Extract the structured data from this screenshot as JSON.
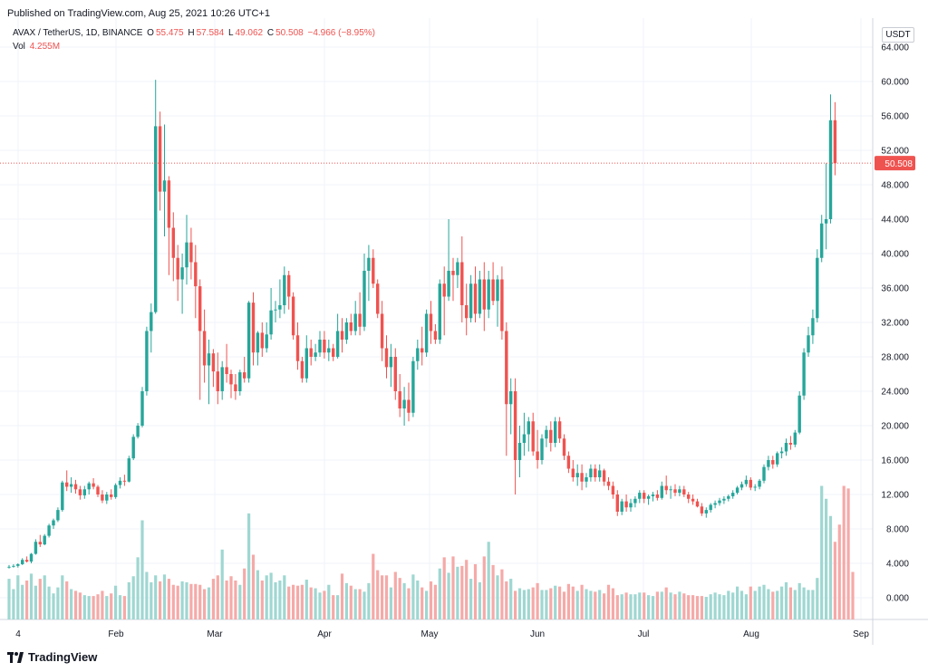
{
  "published": "Published on TradingView.com, Aug 25, 2021 10:26 UTC+1",
  "legend": {
    "symbol": "AVAX / TetherUS, 1D, BINANCE",
    "open_label": "O",
    "open": "55.475",
    "high_label": "H",
    "high": "57.584",
    "low_label": "L",
    "low": "49.062",
    "close_label": "C",
    "close": "50.508",
    "change": "−4.966 (−8.95%)",
    "vol_label": "Vol",
    "vol": "4.255M"
  },
  "currency": "USDT",
  "brand": "TradingView",
  "colors": {
    "up": "#26a69a",
    "down": "#ef5350",
    "up_vol": "#9fd7d1",
    "down_vol": "#f5aaa8",
    "price_line": "#ef5350",
    "grid": "#f0f3fa"
  },
  "chart_data": {
    "type": "candlestick",
    "ylim": [
      -2,
      66
    ],
    "y_ticks": [
      "64.000",
      "60.000",
      "56.000",
      "52.000",
      "48.000",
      "44.000",
      "40.000",
      "36.000",
      "32.000",
      "28.000",
      "24.000",
      "20.000",
      "16.000",
      "12.000",
      "8.000",
      "4.000",
      "0.000"
    ],
    "x_ticks": [
      "4",
      "Feb",
      "Mar",
      "Apr",
      "May",
      "Jun",
      "Jul",
      "Aug",
      "Sep"
    ],
    "last_price": "50.508",
    "grid": true,
    "candles": [
      [
        3.5,
        3.8,
        3.4,
        3.6
      ],
      [
        3.6,
        3.9,
        3.5,
        3.7
      ],
      [
        3.7,
        4.0,
        3.5,
        3.9
      ],
      [
        3.9,
        4.6,
        3.8,
        4.4
      ],
      [
        4.4,
        4.8,
        4.1,
        4.2
      ],
      [
        4.2,
        5.2,
        4.0,
        5.1
      ],
      [
        5.1,
        6.8,
        5.0,
        6.5
      ],
      [
        6.5,
        7.3,
        5.9,
        6.2
      ],
      [
        6.2,
        7.4,
        6.1,
        7.2
      ],
      [
        7.2,
        8.6,
        7.0,
        8.4
      ],
      [
        8.4,
        9.2,
        8.0,
        9.0
      ],
      [
        9.0,
        10.5,
        8.8,
        10.2
      ],
      [
        10.2,
        13.6,
        10.0,
        13.4
      ],
      [
        13.4,
        14.8,
        12.4,
        12.9
      ],
      [
        12.9,
        14.0,
        12.2,
        13.2
      ],
      [
        13.2,
        13.7,
        12.1,
        12.6
      ],
      [
        12.6,
        13.0,
        11.4,
        11.9
      ],
      [
        11.9,
        13.0,
        11.5,
        12.6
      ],
      [
        12.6,
        13.5,
        12.0,
        13.3
      ],
      [
        13.3,
        13.9,
        12.6,
        12.9
      ],
      [
        12.9,
        13.1,
        11.7,
        12.0
      ],
      [
        12.0,
        12.5,
        11.0,
        11.3
      ],
      [
        11.3,
        12.3,
        10.9,
        12.0
      ],
      [
        12.0,
        12.6,
        11.4,
        11.7
      ],
      [
        11.7,
        13.3,
        11.5,
        13.1
      ],
      [
        13.1,
        14.0,
        12.7,
        13.6
      ],
      [
        13.6,
        14.3,
        13.0,
        13.5
      ],
      [
        13.5,
        16.5,
        13.4,
        16.2
      ],
      [
        16.2,
        19.0,
        16.0,
        18.7
      ],
      [
        18.7,
        20.3,
        18.5,
        20.0
      ],
      [
        20.0,
        24.5,
        19.8,
        24.0
      ],
      [
        24.0,
        31.5,
        23.5,
        31.0
      ],
      [
        31.0,
        34.2,
        28.5,
        33.2
      ],
      [
        33.2,
        60.2,
        33.0,
        54.8
      ],
      [
        54.8,
        56.5,
        45.0,
        47.2
      ],
      [
        47.2,
        55.0,
        42.0,
        48.5
      ],
      [
        48.5,
        49.0,
        37.5,
        43.0
      ],
      [
        43.0,
        44.8,
        36.8,
        39.5
      ],
      [
        39.5,
        41.0,
        34.5,
        37.0
      ],
      [
        37.0,
        40.0,
        33.0,
        38.4
      ],
      [
        38.4,
        44.5,
        36.4,
        41.3
      ],
      [
        41.3,
        43.0,
        37.0,
        39.0
      ],
      [
        39.0,
        41.0,
        32.5,
        36.2
      ],
      [
        36.2,
        37.0,
        23.0,
        31.0
      ],
      [
        31.0,
        33.5,
        25.0,
        27.0
      ],
      [
        27.0,
        30.0,
        22.5,
        28.4
      ],
      [
        28.4,
        28.9,
        24.5,
        26.3
      ],
      [
        26.3,
        28.5,
        22.5,
        24.0
      ],
      [
        24.0,
        27.5,
        23.0,
        26.8
      ],
      [
        26.8,
        29.5,
        25.0,
        26.0
      ],
      [
        26.0,
        26.5,
        23.2,
        24.8
      ],
      [
        24.8,
        26.0,
        23.0,
        24.0
      ],
      [
        24.0,
        26.5,
        23.5,
        26.2
      ],
      [
        26.2,
        28.0,
        25.0,
        25.5
      ],
      [
        25.5,
        34.5,
        25.0,
        34.3
      ],
      [
        34.3,
        35.5,
        27.0,
        28.5
      ],
      [
        28.5,
        31.0,
        27.0,
        30.8
      ],
      [
        30.8,
        32.0,
        28.0,
        29.0
      ],
      [
        29.0,
        32.0,
        28.5,
        30.6
      ],
      [
        30.6,
        36.0,
        30.0,
        33.4
      ],
      [
        33.4,
        34.5,
        32.0,
        33.5
      ],
      [
        33.5,
        37.0,
        32.5,
        34.0
      ],
      [
        34.0,
        38.5,
        33.0,
        37.5
      ],
      [
        37.5,
        38.0,
        33.5,
        35.0
      ],
      [
        35.0,
        35.5,
        30.0,
        30.5
      ],
      [
        30.5,
        32.0,
        26.5,
        27.5
      ],
      [
        27.5,
        28.0,
        25.0,
        25.5
      ],
      [
        25.5,
        30.5,
        25.0,
        29.0
      ],
      [
        29.0,
        30.0,
        27.0,
        28.0
      ],
      [
        28.0,
        29.5,
        27.5,
        28.5
      ],
      [
        28.5,
        31.0,
        28.0,
        30.0
      ],
      [
        30.0,
        31.0,
        27.8,
        28.5
      ],
      [
        28.5,
        30.0,
        27.5,
        29.0
      ],
      [
        29.0,
        29.5,
        27.5,
        28.0
      ],
      [
        28.0,
        33.0,
        27.8,
        31.0
      ],
      [
        31.0,
        32.5,
        28.5,
        30.0
      ],
      [
        30.0,
        32.5,
        29.5,
        32.0
      ],
      [
        32.0,
        33.0,
        30.5,
        31.0
      ],
      [
        31.0,
        34.5,
        30.5,
        33.0
      ],
      [
        33.0,
        35.5,
        30.5,
        31.5
      ],
      [
        31.5,
        40.0,
        31.0,
        38.0
      ],
      [
        38.0,
        41.0,
        34.5,
        39.5
      ],
      [
        39.5,
        40.5,
        36.0,
        36.5
      ],
      [
        36.5,
        37.0,
        32.5,
        33.0
      ],
      [
        33.0,
        34.5,
        27.5,
        29.0
      ],
      [
        29.0,
        30.5,
        25.5,
        26.8
      ],
      [
        26.8,
        29.5,
        24.5,
        28.0
      ],
      [
        28.0,
        29.0,
        23.0,
        24.0
      ],
      [
        24.0,
        26.0,
        21.0,
        22.0
      ],
      [
        22.0,
        24.5,
        20.0,
        23.0
      ],
      [
        23.0,
        25.0,
        20.5,
        21.5
      ],
      [
        21.5,
        28.0,
        21.0,
        27.5
      ],
      [
        27.5,
        30.0,
        26.5,
        29.0
      ],
      [
        29.0,
        31.5,
        27.0,
        28.5
      ],
      [
        28.5,
        33.5,
        28.0,
        33.0
      ],
      [
        33.0,
        34.5,
        29.5,
        31.0
      ],
      [
        31.0,
        31.8,
        29.5,
        30.0
      ],
      [
        30.0,
        37.0,
        29.5,
        36.5
      ],
      [
        36.5,
        38.5,
        30.5,
        35.0
      ],
      [
        35.0,
        44.0,
        34.5,
        38.0
      ],
      [
        38.0,
        39.5,
        34.5,
        37.5
      ],
      [
        37.5,
        39.5,
        36.0,
        39.0
      ],
      [
        39.0,
        42.0,
        32.0,
        34.0
      ],
      [
        34.0,
        36.5,
        30.5,
        32.5
      ],
      [
        32.5,
        37.5,
        32.0,
        36.5
      ],
      [
        36.5,
        38.5,
        32.0,
        33.0
      ],
      [
        33.0,
        38.0,
        32.5,
        37.0
      ],
      [
        37.0,
        39.0,
        31.0,
        33.5
      ],
      [
        33.5,
        38.0,
        32.5,
        37.0
      ],
      [
        37.0,
        39.0,
        34.0,
        34.5
      ],
      [
        34.5,
        37.5,
        31.5,
        37.0
      ],
      [
        37.0,
        38.5,
        30.0,
        31.0
      ],
      [
        31.0,
        32.0,
        16.5,
        22.5
      ],
      [
        22.5,
        25.5,
        19.0,
        24.0
      ],
      [
        24.0,
        25.5,
        12.0,
        16.0
      ],
      [
        16.0,
        20.0,
        14.0,
        18.0
      ],
      [
        18.0,
        21.5,
        16.5,
        19.0
      ],
      [
        19.0,
        21.0,
        17.0,
        20.5
      ],
      [
        20.5,
        21.5,
        16.5,
        17.0
      ],
      [
        17.0,
        19.5,
        15.0,
        16.0
      ],
      [
        16.0,
        19.0,
        15.5,
        18.5
      ],
      [
        18.5,
        20.0,
        17.5,
        19.5
      ],
      [
        19.5,
        20.5,
        17.0,
        18.0
      ],
      [
        18.0,
        21.0,
        17.5,
        20.5
      ],
      [
        20.5,
        21.0,
        18.0,
        18.5
      ],
      [
        18.5,
        19.0,
        16.0,
        16.5
      ],
      [
        16.5,
        17.0,
        14.5,
        15.0
      ],
      [
        15.0,
        16.0,
        13.5,
        14.0
      ],
      [
        14.0,
        15.5,
        13.0,
        14.5
      ],
      [
        14.5,
        15.5,
        12.5,
        13.5
      ],
      [
        13.5,
        14.5,
        12.8,
        14.0
      ],
      [
        14.0,
        15.5,
        13.5,
        15.0
      ],
      [
        15.0,
        15.5,
        13.5,
        14.0
      ],
      [
        14.0,
        15.5,
        13.5,
        14.8
      ],
      [
        14.8,
        15.0,
        13.0,
        13.5
      ],
      [
        13.5,
        14.0,
        12.5,
        13.0
      ],
      [
        13.0,
        13.5,
        11.5,
        12.0
      ],
      [
        12.0,
        12.5,
        9.5,
        10.0
      ],
      [
        10.0,
        11.5,
        9.6,
        11.2
      ],
      [
        11.2,
        12.0,
        10.0,
        10.5
      ],
      [
        10.5,
        11.5,
        10.0,
        11.0
      ],
      [
        11.0,
        11.8,
        10.5,
        11.5
      ],
      [
        11.5,
        12.5,
        11.0,
        12.2
      ],
      [
        12.2,
        12.5,
        11.0,
        11.5
      ],
      [
        11.5,
        12.0,
        10.8,
        11.8
      ],
      [
        11.8,
        12.3,
        11.2,
        12.0
      ],
      [
        12.0,
        12.5,
        11.3,
        11.6
      ],
      [
        11.6,
        13.5,
        11.4,
        13.0
      ],
      [
        13.0,
        14.2,
        12.0,
        12.5
      ],
      [
        12.5,
        13.0,
        11.5,
        12.6
      ],
      [
        12.6,
        13.2,
        11.8,
        12.2
      ],
      [
        12.2,
        13.0,
        11.8,
        12.6
      ],
      [
        12.6,
        13.0,
        11.7,
        12.0
      ],
      [
        12.0,
        12.3,
        11.0,
        11.5
      ],
      [
        11.5,
        12.0,
        10.8,
        11.2
      ],
      [
        11.2,
        11.5,
        10.5,
        10.6
      ],
      [
        10.6,
        11.0,
        9.5,
        9.8
      ],
      [
        9.8,
        10.5,
        9.3,
        10.2
      ],
      [
        10.2,
        11.0,
        9.9,
        10.8
      ],
      [
        10.8,
        11.3,
        10.4,
        11.0
      ],
      [
        11.0,
        11.6,
        10.7,
        11.3
      ],
      [
        11.3,
        11.8,
        10.9,
        11.5
      ],
      [
        11.5,
        12.0,
        11.2,
        11.8
      ],
      [
        11.8,
        12.5,
        11.5,
        12.2
      ],
      [
        12.2,
        13.0,
        12.0,
        12.8
      ],
      [
        12.8,
        13.5,
        12.5,
        13.2
      ],
      [
        13.2,
        14.2,
        12.9,
        13.7
      ],
      [
        13.7,
        14.0,
        12.5,
        12.8
      ],
      [
        12.8,
        13.2,
        12.4,
        12.9
      ],
      [
        12.9,
        13.8,
        12.6,
        13.6
      ],
      [
        13.6,
        15.5,
        13.3,
        15.2
      ],
      [
        15.2,
        16.5,
        14.8,
        16.0
      ],
      [
        16.0,
        16.5,
        15.0,
        15.5
      ],
      [
        15.5,
        17.0,
        15.2,
        16.8
      ],
      [
        16.8,
        17.5,
        16.2,
        17.0
      ],
      [
        17.0,
        18.5,
        16.5,
        18.0
      ],
      [
        18.0,
        18.8,
        17.2,
        17.8
      ],
      [
        17.8,
        19.5,
        17.5,
        19.2
      ],
      [
        19.2,
        24.0,
        19.0,
        23.5
      ],
      [
        23.5,
        29.0,
        23.0,
        28.5
      ],
      [
        28.5,
        31.5,
        28.0,
        30.5
      ],
      [
        30.5,
        33.5,
        29.5,
        32.5
      ],
      [
        32.5,
        40.5,
        32.0,
        39.5
      ],
      [
        39.5,
        44.5,
        39.0,
        43.5
      ],
      [
        43.5,
        50.5,
        40.5,
        44.0
      ],
      [
        44.0,
        58.5,
        43.5,
        55.5
      ],
      [
        55.5,
        57.6,
        49.1,
        50.5
      ]
    ],
    "volumes": [
      2.2,
      1.0,
      2.6,
      1.5,
      2.0,
      2.8,
      1.4,
      2.2,
      2.6,
      1.3,
      0.5,
      1.2,
      2.6,
      1.9,
      1.0,
      0.8,
      0.6,
      0.3,
      0.2,
      0.2,
      0.4,
      0.8,
      0.2,
      0.5,
      1.4,
      0.3,
      0.2,
      1.8,
      2.5,
      4.7,
      9.0,
      3.0,
      1.8,
      2.6,
      1.9,
      2.7,
      2.2,
      1.5,
      1.4,
      1.9,
      1.8,
      1.6,
      1.6,
      1.5,
      1.0,
      1.2,
      2.2,
      2.6,
      5.6,
      2.0,
      2.5,
      2.0,
      1.5,
      3.4,
      9.8,
      5.0,
      3.2,
      2.0,
      2.6,
      2.9,
      1.8,
      2.0,
      2.6,
      1.3,
      1.5,
      1.4,
      1.5,
      2.1,
      1.2,
      1.1,
      0.6,
      0.8,
      1.5,
      0.3,
      0.3,
      2.8,
      1.7,
      1.4,
      1.0,
      1.0,
      0.7,
      1.7,
      5.1,
      3.2,
      2.6,
      2.6,
      1.2,
      3.0,
      2.3,
      1.7,
      1.1,
      2.7,
      2.0,
      1.2,
      0.8,
      1.9,
      1.5,
      3.4,
      4.7,
      2.9,
      4.8,
      3.6,
      3.7,
      4.4,
      2.2,
      3.9,
      1.8,
      4.8,
      6.5,
      3.8,
      2.6,
      3.3,
      1.9,
      2.2,
      0.8,
      1.1,
      0.9,
      1.0,
      1.2,
      1.7,
      0.9,
      0.9,
      1.1,
      1.4,
      1.3,
      0.7,
      1.6,
      1.3,
      0.8,
      1.5,
      1.0,
      0.8,
      0.7,
      0.9,
      0.5,
      1.5,
      1.1,
      0.3,
      0.4,
      0.6,
      0.4,
      0.4,
      0.6,
      0.6,
      0.3,
      0.2,
      0.7,
      0.7,
      1.2,
      0.6,
      0.4,
      0.7,
      0.5,
      0.3,
      0.3,
      0.2,
      0.2,
      0.1,
      0.4,
      0.6,
      0.4,
      0.3,
      0.8,
      0.6,
      1.3,
      0.8,
      0.4,
      1.3,
      0.8,
      1.3,
      1.5,
      1.0,
      0.7,
      0.8,
      1.3,
      1.8,
      1.2,
      0.9,
      1.7,
      1.2,
      0.9,
      0.9,
      2.3,
      13.0,
      11.5,
      9.5,
      6.5,
      8.5,
      13.0,
      12.7,
      3.0
    ]
  }
}
